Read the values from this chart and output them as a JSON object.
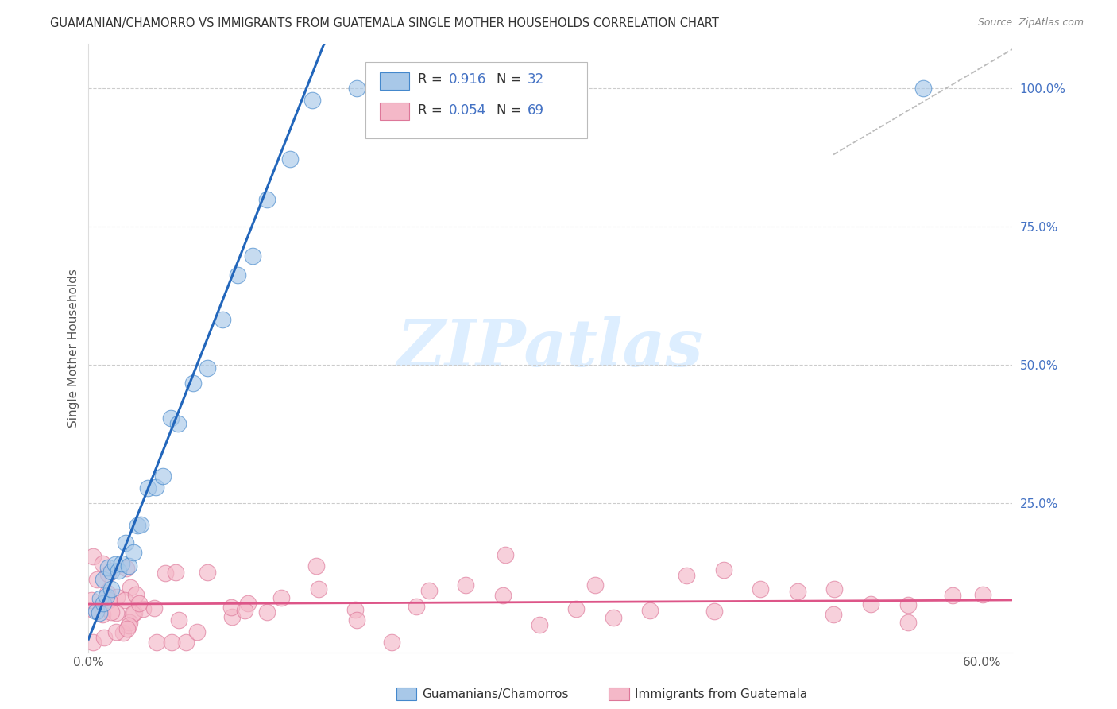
{
  "title": "GUAMANIAN/CHAMORRO VS IMMIGRANTS FROM GUATEMALA SINGLE MOTHER HOUSEHOLDS CORRELATION CHART",
  "source": "Source: ZipAtlas.com",
  "ylabel": "Single Mother Households",
  "xlim": [
    0.0,
    0.62
  ],
  "ylim": [
    -0.02,
    1.08
  ],
  "x_ticks": [
    0.0,
    0.6
  ],
  "x_tick_labels": [
    "0.0%",
    "60.0%"
  ],
  "y_ticks_right": [
    0.25,
    0.5,
    0.75,
    1.0
  ],
  "y_tick_labels_right": [
    "25.0%",
    "50.0%",
    "75.0%",
    "100.0%"
  ],
  "legend_labels": [
    "Guamanians/Chamorros",
    "Immigrants from Guatemala"
  ],
  "R_blue": 0.916,
  "N_blue": 32,
  "R_pink": 0.054,
  "N_pink": 69,
  "blue_color": "#a8c8e8",
  "pink_color": "#f4b8c8",
  "blue_edge_color": "#4488cc",
  "pink_edge_color": "#dd7799",
  "blue_line_color": "#2266bb",
  "pink_line_color": "#dd5588",
  "grid_color": "#cccccc",
  "watermark_color": "#ddeeff",
  "title_color": "#333333",
  "source_color": "#888888",
  "right_tick_color": "#4472c4",
  "bottom_tick_color": "#555555"
}
